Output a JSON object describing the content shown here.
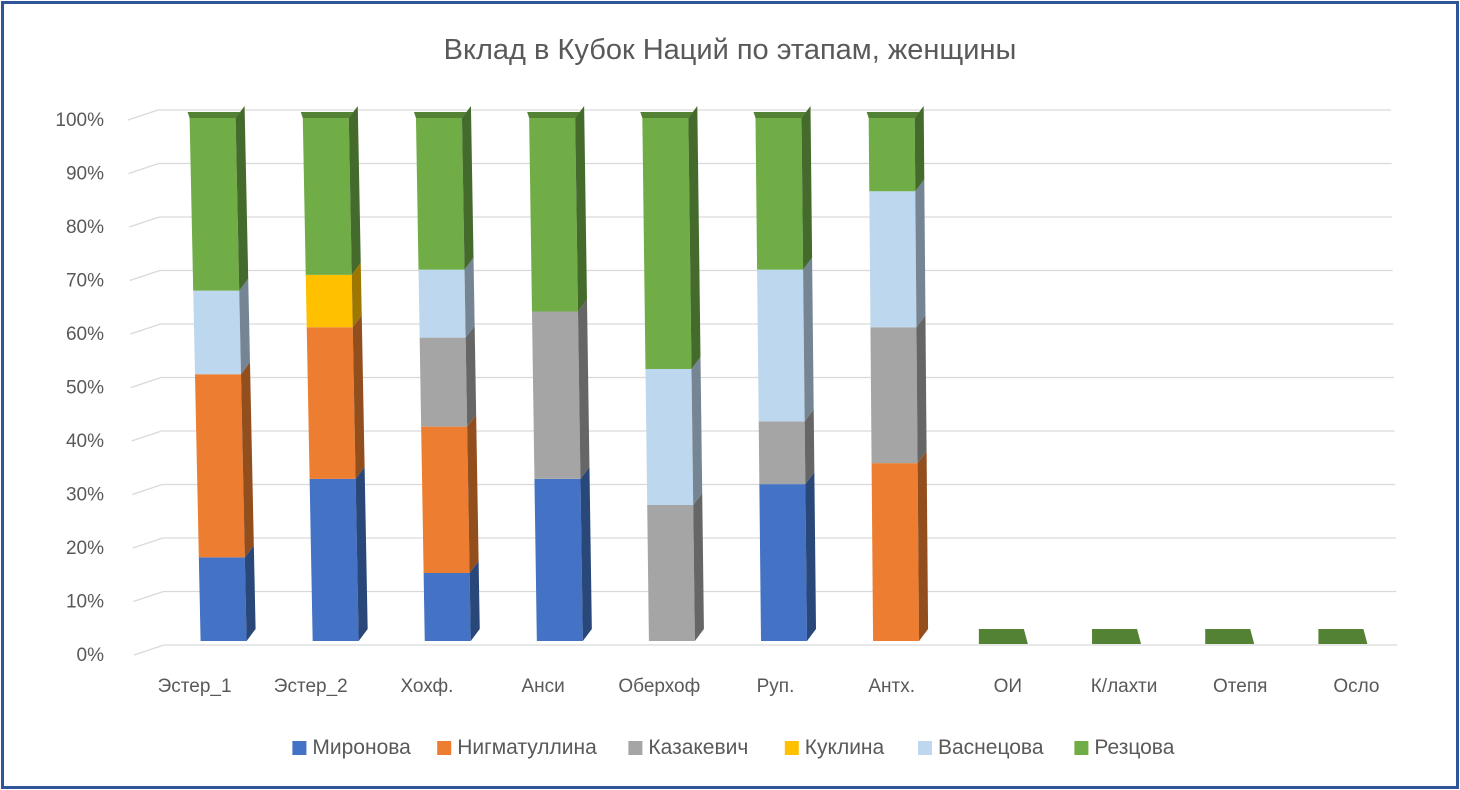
{
  "chart_data": {
    "type": "bar",
    "stacked": "percent",
    "three_d": true,
    "title": "Вклад в Кубок Наций по этапам, женщины",
    "xlabel": "",
    "ylabel": "",
    "ylim": [
      0,
      100
    ],
    "y_ticks": [
      "0%",
      "10%",
      "20%",
      "30%",
      "40%",
      "50%",
      "60%",
      "70%",
      "80%",
      "90%",
      "100%"
    ],
    "grid": true,
    "legend_position": "bottom",
    "categories": [
      "Эстер_1",
      "Эстер_2",
      "Хохф.",
      "Анси",
      "Оберхоф",
      "Руп.",
      "Антх.",
      "ОИ",
      "К/лахти",
      "Отепя",
      "Осло"
    ],
    "series": [
      {
        "name": "Миронова",
        "color": "#4472c4",
        "values": [
          16,
          31,
          13,
          31,
          0,
          30,
          0,
          0,
          0,
          0,
          0
        ]
      },
      {
        "name": "Нигматуллина",
        "color": "#ed7d31",
        "values": [
          35,
          29,
          28,
          0,
          0,
          0,
          34,
          0,
          0,
          0,
          0
        ]
      },
      {
        "name": "Казакевич",
        "color": "#a5a5a5",
        "values": [
          0,
          0,
          17,
          32,
          26,
          12,
          26,
          0,
          0,
          0,
          0
        ]
      },
      {
        "name": "Куклина",
        "color": "#ffc000",
        "values": [
          0,
          10,
          0,
          0,
          0,
          0,
          0,
          0,
          0,
          0,
          0
        ]
      },
      {
        "name": "Васнецова",
        "color": "#bdd7ee",
        "values": [
          16,
          0,
          13,
          0,
          26,
          29,
          26,
          0,
          0,
          0,
          0
        ]
      },
      {
        "name": "Резцова",
        "color": "#70ad47",
        "values": [
          33,
          30,
          29,
          37,
          48,
          29,
          14,
          0,
          0,
          0,
          0
        ]
      }
    ]
  }
}
